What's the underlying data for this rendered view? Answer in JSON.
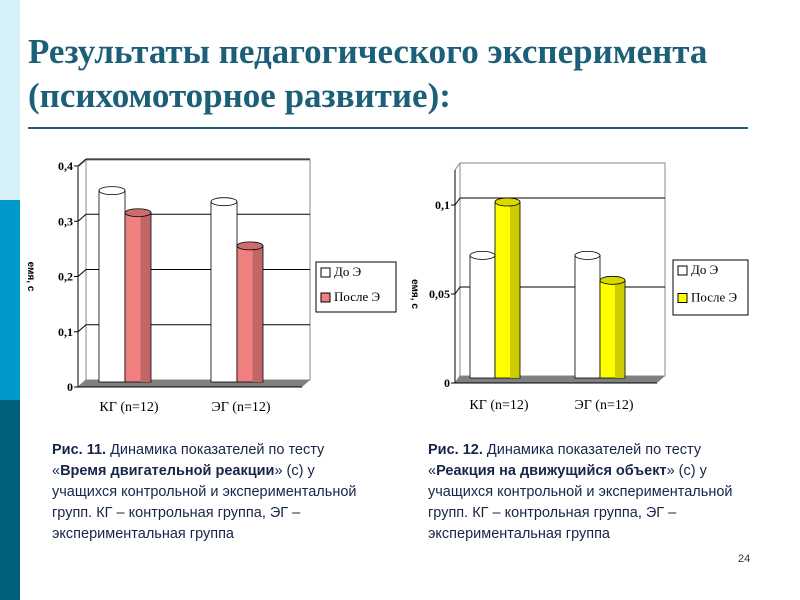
{
  "slide": {
    "title": "Результаты педагогического эксперимента (психомоторное развитие):",
    "page_number": "24",
    "colors": {
      "title": "#1b5f78",
      "band_light": "#d7f1f9",
      "band_mid": "#0099cc",
      "band_dark": "#00607c",
      "caption": "#17254a"
    }
  },
  "captions": [
    {
      "fig": "Рис. 11.",
      "t1": " Динамика показателей по тесту «",
      "bold": "Время двигательной реакции",
      "t2": "» (с) у учащихся контрольной и экспериментальной групп. КГ – контрольная группа, ЭГ – экспериментальная группа"
    },
    {
      "fig": "Рис. 12.",
      "t1": " Динамика показателей по тесту «",
      "bold": "Реакция на движущийся объект",
      "t2": "» (с) у учащихся контрольной и экспериментальной групп. КГ – контрольная группа, ЭГ – экспериментальная группа"
    }
  ],
  "chart_data": [
    {
      "type": "bar",
      "style": "3d-cylinder",
      "categories": [
        "КГ (n=12)",
        "ЭГ (n=12)"
      ],
      "series": [
        {
          "name": "До Э",
          "values": [
            0.35,
            0.33
          ],
          "color": "#ffffff"
        },
        {
          "name": "После Э",
          "values": [
            0.31,
            0.25
          ],
          "color": "#f08080"
        }
      ],
      "ylabel": "емя, с",
      "ylim": [
        0,
        0.4
      ],
      "yticks": [
        "0",
        "0,1",
        "0,2",
        "0,3",
        "0,4"
      ],
      "ytick_values": [
        0,
        0.1,
        0.2,
        0.3,
        0.4
      ],
      "grid": true,
      "legend": "right"
    },
    {
      "type": "bar",
      "style": "3d-cylinder",
      "categories": [
        "КГ (n=12)",
        "ЭГ (n=12)"
      ],
      "series": [
        {
          "name": "До Э",
          "values": [
            0.07,
            0.07
          ],
          "color": "#ffffff"
        },
        {
          "name": "После Э",
          "values": [
            0.1,
            0.056
          ],
          "color": "#ffff00"
        }
      ],
      "ylabel": "емя, с",
      "ylim": [
        0,
        0.1
      ],
      "yticks": [
        "0",
        "0,05",
        "0,1"
      ],
      "ytick_values": [
        0,
        0.05,
        0.1
      ],
      "grid": true,
      "legend": "right"
    }
  ]
}
